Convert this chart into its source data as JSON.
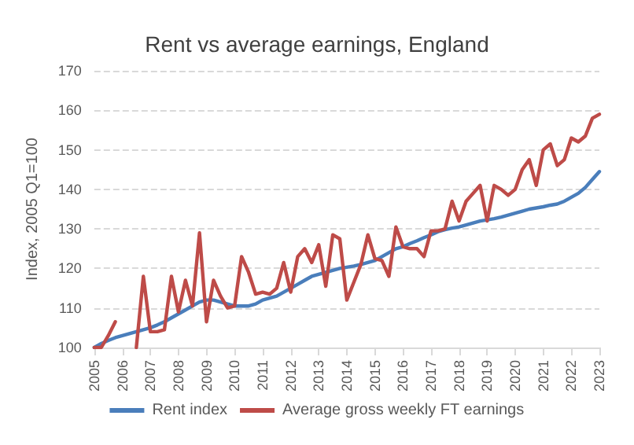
{
  "chart_data": {
    "type": "line",
    "title": "Rent vs average earnings, England",
    "ylabel": "Index, 2005 Q1=100",
    "categories": [
      "2005",
      null,
      null,
      null,
      "2006",
      null,
      null,
      null,
      "2007",
      null,
      null,
      null,
      "2008",
      null,
      null,
      null,
      "2009",
      null,
      null,
      null,
      "2010",
      null,
      null,
      null,
      "2011",
      null,
      null,
      null,
      "2012",
      null,
      null,
      null,
      "2013",
      null,
      null,
      null,
      "2014",
      null,
      null,
      null,
      "2015",
      null,
      null,
      null,
      "2016",
      null,
      null,
      null,
      "2017",
      null,
      null,
      null,
      "2018",
      null,
      null,
      null,
      "2019",
      null,
      null,
      null,
      "2020",
      null,
      null,
      null,
      "2021",
      null,
      null,
      null,
      "2022",
      null,
      null,
      null,
      "2023"
    ],
    "series": [
      {
        "name": "Rent index",
        "color": "#4a7ebb",
        "values": [
          100,
          101,
          101.8,
          102.5,
          103,
          103.5,
          104,
          104.5,
          105,
          105.7,
          106.5,
          107.5,
          108.5,
          109.5,
          110.5,
          111.5,
          112,
          112,
          111.5,
          111,
          110.5,
          110.5,
          110.5,
          111,
          112,
          112.5,
          113,
          114,
          115,
          116,
          117,
          118,
          118.5,
          119,
          119.5,
          120,
          120.3,
          120.6,
          121,
          121.5,
          122,
          123,
          124,
          125,
          125.5,
          126.3,
          127,
          127.8,
          128.5,
          129.3,
          129.8,
          130.2,
          130.5,
          131,
          131.5,
          132,
          132.3,
          132.6,
          133,
          133.5,
          134,
          134.5,
          135,
          135.3,
          135.6,
          136,
          136.3,
          137,
          138,
          139,
          140.5,
          142.5,
          144.5
        ]
      },
      {
        "name": "Average gross weekly FT earnings",
        "color": "#be4b48",
        "values": [
          100,
          100,
          103,
          106.5,
          null,
          null,
          100,
          118,
          104,
          104,
          104.5,
          118,
          109,
          117,
          110.5,
          129,
          106.5,
          117,
          113,
          110,
          110.5,
          123,
          119,
          113.5,
          114,
          113.5,
          115,
          121.5,
          114,
          123,
          125,
          121.5,
          126,
          115.5,
          128.5,
          127.5,
          112,
          116.5,
          121,
          128.5,
          122.5,
          122,
          118,
          130.5,
          125.5,
          125,
          125,
          123,
          129.5,
          129.5,
          130,
          137,
          132,
          137,
          139,
          141,
          132,
          141,
          140,
          138.5,
          140,
          145,
          147.5,
          141,
          150,
          151.5,
          146,
          147.5,
          153,
          152,
          153.5,
          158,
          159
        ]
      }
    ],
    "ylim": [
      100,
      170
    ],
    "yticks": [
      100,
      110,
      120,
      130,
      140,
      150,
      160,
      170
    ],
    "grid": "y",
    "legend": "bottom",
    "marker": "none",
    "line_style": "solid"
  }
}
